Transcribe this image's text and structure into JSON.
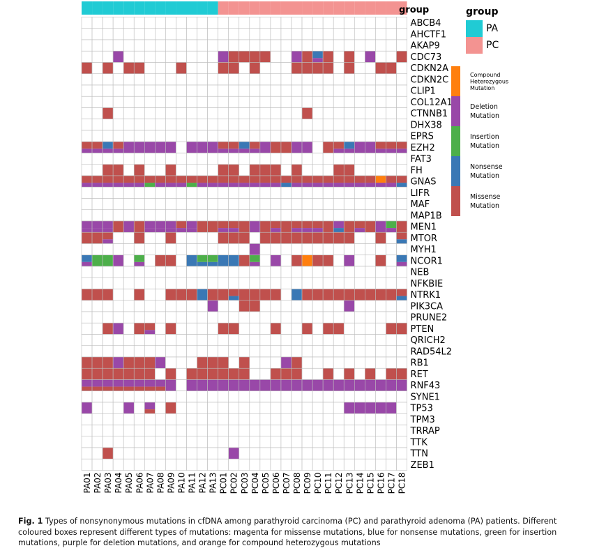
{
  "chart_data": {
    "type": "heatmap",
    "title": "",
    "xlabel": "",
    "ylabel": "",
    "samples": [
      "PA01",
      "PA02",
      "PA03",
      "PA04",
      "PA05",
      "PA06",
      "PA07",
      "PA08",
      "PA09",
      "PA10",
      "PA11",
      "PA12",
      "PA13",
      "PC01",
      "PC02",
      "PC03",
      "PC04",
      "PC05",
      "PC06",
      "PC07",
      "PC08",
      "PC09",
      "PC10",
      "PC11",
      "PC12",
      "PC13",
      "PC14",
      "PC15",
      "PC16",
      "PC17",
      "PC18"
    ],
    "sample_group": [
      "PA",
      "PA",
      "PA",
      "PA",
      "PA",
      "PA",
      "PA",
      "PA",
      "PA",
      "PA",
      "PA",
      "PA",
      "PA",
      "PC",
      "PC",
      "PC",
      "PC",
      "PC",
      "PC",
      "PC",
      "PC",
      "PC",
      "PC",
      "PC",
      "PC",
      "PC",
      "PC",
      "PC",
      "PC",
      "PC",
      "PC"
    ],
    "group_track_label": "group",
    "genes": [
      "ABCB4",
      "AHCTF1",
      "AKAP9",
      "CDC73",
      "CDKN2A",
      "CDKN2C",
      "CLIP1",
      "COL12A1",
      "CTNNB1",
      "DHX38",
      "EPRS",
      "EZH2",
      "FAT3",
      "FH",
      "GNAS",
      "LIFR",
      "MAF",
      "MAP1B",
      "MEN1",
      "MTOR",
      "MYH1",
      "NCOR1",
      "NEB",
      "NFKBIE",
      "NTRK1",
      "PIK3CA",
      "PRUNE2",
      "PTEN",
      "QRICH2",
      "RAD54L2",
      "RB1",
      "RET",
      "RNF43",
      "SYNE1",
      "TP53",
      "TPM3",
      "TRRAP",
      "TTK",
      "TTN",
      "ZEB1"
    ],
    "codes": {
      "M": "Missense Mutation",
      "D": "Deletion Mutation",
      "N": "Nonsense Mutation",
      "I": "Insertion Mutation",
      "C": "Compound Heterozygous Mutation"
    },
    "matrix": [
      [
        "",
        "",
        "",
        "",
        "",
        "",
        "",
        "",
        "",
        "",
        "",
        "",
        "",
        "",
        "",
        "",
        "",
        "",
        "",
        "",
        "",
        "",
        "",
        "",
        "",
        "",
        "",
        "",
        "",
        "",
        ""
      ],
      [
        "",
        "",
        "",
        "",
        "",
        "",
        "",
        "",
        "",
        "",
        "",
        "",
        "",
        "",
        "",
        "",
        "",
        "",
        "",
        "",
        "",
        "",
        "",
        "",
        "",
        "",
        "",
        "",
        "",
        "",
        ""
      ],
      [
        "",
        "",
        "",
        "",
        "",
        "",
        "",
        "",
        "",
        "",
        "",
        "",
        "",
        "",
        "",
        "",
        "",
        "",
        "",
        "",
        "",
        "",
        "",
        "",
        "",
        "",
        "",
        "",
        "",
        "",
        ""
      ],
      [
        "",
        "",
        "",
        "D",
        "",
        "",
        "",
        "",
        "",
        "",
        "",
        "",
        "",
        "D",
        "M",
        "M",
        "M",
        "M",
        "",
        "",
        "D",
        "M",
        "N|D",
        "M",
        "",
        "M",
        "",
        "D",
        "",
        "",
        "M"
      ],
      [
        "M",
        "",
        "M",
        "",
        "M",
        "M",
        "",
        "",
        "",
        "M",
        "",
        "",
        "",
        "M",
        "M",
        "",
        "M",
        "",
        "",
        "",
        "M",
        "M",
        "M",
        "M",
        "",
        "M",
        "",
        "",
        "M",
        "M",
        ""
      ],
      [
        "",
        "",
        "",
        "",
        "",
        "",
        "",
        "",
        "",
        "",
        "",
        "",
        "",
        "",
        "",
        "",
        "",
        "",
        "",
        "",
        "",
        "",
        "",
        "",
        "",
        "",
        "",
        "",
        "",
        "",
        ""
      ],
      [
        "",
        "",
        "",
        "",
        "",
        "",
        "",
        "",
        "",
        "",
        "",
        "",
        "",
        "",
        "",
        "",
        "",
        "",
        "",
        "",
        "",
        "",
        "",
        "",
        "",
        "",
        "",
        "",
        "",
        "",
        ""
      ],
      [
        "",
        "",
        "",
        "",
        "",
        "",
        "",
        "",
        "",
        "",
        "",
        "",
        "",
        "",
        "",
        "",
        "",
        "",
        "",
        "",
        "",
        "",
        "",
        "",
        "",
        "",
        "",
        "",
        "",
        "",
        ""
      ],
      [
        "",
        "",
        "M",
        "",
        "",
        "",
        "",
        "",
        "",
        "",
        "",
        "",
        "",
        "",
        "",
        "",
        "",
        "",
        "",
        "",
        "",
        "M",
        "",
        "",
        "",
        "",
        "",
        "",
        "",
        "",
        ""
      ],
      [
        "",
        "",
        "",
        "",
        "",
        "",
        "",
        "",
        "",
        "",
        "",
        "",
        "",
        "",
        "",
        "",
        "",
        "",
        "",
        "",
        "",
        "",
        "",
        "",
        "",
        "",
        "",
        "",
        "",
        "",
        ""
      ],
      [
        "",
        "",
        "",
        "",
        "",
        "",
        "",
        "",
        "",
        "",
        "",
        "",
        "",
        "",
        "",
        "",
        "",
        "",
        "",
        "",
        "",
        "",
        "",
        "",
        "",
        "",
        "",
        "",
        "",
        "",
        ""
      ],
      [
        "M|D",
        "M|D",
        "N|D",
        "M|D",
        "D",
        "D",
        "D",
        "D",
        "D",
        "",
        "D",
        "D",
        "D",
        "M|D",
        "M|D",
        "N|D",
        "M|D",
        "D",
        "M",
        "M",
        "D",
        "D",
        "",
        "M",
        "M|D",
        "N|D",
        "D",
        "D",
        "M|D",
        "M|D",
        "M|D"
      ],
      [
        "",
        "",
        "",
        "",
        "",
        "",
        "",
        "",
        "",
        "",
        "",
        "",
        "",
        "",
        "",
        "",
        "",
        "",
        "",
        "",
        "",
        "",
        "",
        "",
        "",
        "",
        "",
        "",
        "",
        "",
        ""
      ],
      [
        "",
        "",
        "M",
        "M",
        "",
        "M",
        "",
        "",
        "M",
        "",
        "",
        "",
        "",
        "M",
        "M",
        "",
        "M",
        "M",
        "M",
        "",
        "M",
        "",
        "",
        "",
        "M",
        "M",
        "",
        "",
        "",
        "",
        ""
      ],
      [
        "M|D",
        "M|D",
        "M|D",
        "M|D",
        "M|D",
        "M|D",
        "M|I",
        "M|D",
        "M|D",
        "M|D",
        "M|I",
        "M|D",
        "M|D",
        "M|D",
        "M|D",
        "M|D",
        "M|D",
        "M|D",
        "M|D",
        "M|N",
        "M|D",
        "M|D",
        "M|D",
        "M|D",
        "M|D",
        "M|D",
        "M|D",
        "M|D",
        "C|D",
        "M|D",
        "M|N"
      ],
      [
        "",
        "",
        "",
        "",
        "",
        "",
        "",
        "",
        "",
        "",
        "",
        "",
        "",
        "",
        "",
        "",
        "",
        "",
        "",
        "",
        "",
        "",
        "",
        "",
        "",
        "",
        "",
        "",
        "",
        "",
        ""
      ],
      [
        "",
        "",
        "",
        "",
        "",
        "",
        "",
        "",
        "",
        "",
        "",
        "",
        "",
        "",
        "",
        "",
        "",
        "",
        "",
        "",
        "",
        "",
        "",
        "",
        "",
        "",
        "",
        "",
        "",
        "",
        ""
      ],
      [
        "",
        "",
        "",
        "",
        "",
        "",
        "",
        "",
        "",
        "",
        "",
        "",
        "",
        "",
        "",
        "",
        "",
        "",
        "",
        "",
        "",
        "",
        "",
        "",
        "",
        "",
        "",
        "",
        "",
        "",
        ""
      ],
      [
        "D|D",
        "D|D",
        "D|D",
        "M",
        "D",
        "M",
        "D|D",
        "D|D",
        "D|D",
        "M|D",
        "D|D",
        "M",
        "M",
        "M|D",
        "M|D",
        "M",
        "D",
        "M",
        "M|D",
        "M",
        "M|D",
        "M|D",
        "M|D",
        "M",
        "D|N",
        "M",
        "M|D",
        "M",
        "D",
        "I|D",
        "M"
      ],
      [
        "M",
        "M",
        "M|D",
        "",
        "",
        "M",
        "",
        "",
        "M",
        "",
        "",
        "",
        "",
        "M",
        "M",
        "M",
        "",
        "M",
        "M",
        "M",
        "M",
        "M",
        "M",
        "M",
        "M",
        "M",
        "",
        "",
        "M",
        "",
        "M|N"
      ],
      [
        "",
        "",
        "",
        "",
        "",
        "",
        "",
        "",
        "",
        "",
        "",
        "",
        "",
        "",
        "",
        "",
        "D",
        "",
        "",
        "",
        "",
        "",
        "",
        "",
        "",
        "",
        "",
        "",
        "",
        "",
        ""
      ],
      [
        "N|D",
        "I",
        "I",
        "D",
        "",
        "I|D",
        "",
        "M",
        "M",
        "",
        "N",
        "I|N",
        "I|N",
        "N",
        "N",
        "M",
        "I|D",
        "",
        "D",
        "",
        "M",
        "C",
        "M",
        "M",
        "",
        "D",
        "",
        "",
        "M",
        "",
        "N|D"
      ],
      [
        "",
        "",
        "",
        "",
        "",
        "",
        "",
        "",
        "",
        "",
        "",
        "",
        "",
        "",
        "",
        "",
        "",
        "",
        "",
        "",
        "",
        "",
        "",
        "",
        "",
        "",
        "",
        "",
        "",
        "",
        ""
      ],
      [
        "",
        "",
        "",
        "",
        "",
        "",
        "",
        "",
        "",
        "",
        "",
        "",
        "",
        "",
        "",
        "",
        "",
        "",
        "",
        "",
        "",
        "",
        "",
        "",
        "",
        "",
        "",
        "",
        "",
        "",
        ""
      ],
      [
        "M",
        "M",
        "M",
        "",
        "",
        "M",
        "",
        "",
        "M",
        "M",
        "M",
        "N",
        "M",
        "M",
        "M|N",
        "M",
        "M",
        "M",
        "M",
        "",
        "N",
        "M",
        "M",
        "M",
        "M",
        "M",
        "M",
        "M",
        "M",
        "M",
        "M|N"
      ],
      [
        "",
        "",
        "",
        "",
        "",
        "",
        "",
        "",
        "",
        "",
        "",
        "",
        "D",
        "",
        "",
        "M",
        "M",
        "",
        "",
        "",
        "",
        "",
        "",
        "",
        "",
        "D",
        "",
        "",
        "",
        "",
        ""
      ],
      [
        "",
        "",
        "",
        "",
        "",
        "",
        "",
        "",
        "",
        "",
        "",
        "",
        "",
        "",
        "",
        "",
        "",
        "",
        "",
        "",
        "",
        "",
        "",
        "",
        "",
        "",
        "",
        "",
        "",
        "",
        ""
      ],
      [
        "",
        "",
        "M",
        "D",
        "",
        "M",
        "M|D",
        "",
        "M",
        "",
        "",
        "",
        "",
        "M",
        "M",
        "",
        "",
        "",
        "M",
        "",
        "",
        "M",
        "",
        "M",
        "M",
        "",
        "",
        "",
        "",
        "M",
        "M"
      ],
      [
        "",
        "",
        "",
        "",
        "",
        "",
        "",
        "",
        "",
        "",
        "",
        "",
        "",
        "",
        "",
        "",
        "",
        "",
        "",
        "",
        "",
        "",
        "",
        "",
        "",
        "",
        "",
        "",
        "",
        "",
        ""
      ],
      [
        "",
        "",
        "",
        "",
        "",
        "",
        "",
        "",
        "",
        "",
        "",
        "",
        "",
        "",
        "",
        "",
        "",
        "",
        "",
        "",
        "",
        "",
        "",
        "",
        "",
        "",
        "",
        "",
        "",
        "",
        ""
      ],
      [
        "M",
        "M",
        "M",
        "D",
        "M",
        "M",
        "M",
        "D",
        "",
        "",
        "",
        "M",
        "M",
        "M",
        "",
        "M",
        "",
        "",
        "",
        "D",
        "M",
        "",
        "",
        "",
        "",
        "",
        "",
        "",
        "",
        "",
        ""
      ],
      [
        "M",
        "M",
        "M",
        "M",
        "M",
        "M",
        "M",
        "",
        "M",
        "",
        "M",
        "M",
        "M",
        "M",
        "M",
        "M",
        "",
        "",
        "M",
        "M",
        "M",
        "",
        "",
        "M",
        "",
        "M",
        "",
        "M",
        "",
        "M",
        "M"
      ],
      [
        "D|M",
        "D|M",
        "D|M",
        "D|M",
        "D|M",
        "D|M",
        "D|M",
        "D|M",
        "D",
        "",
        "D",
        "D",
        "D",
        "D",
        "D",
        "D",
        "D",
        "D",
        "D",
        "D",
        "D",
        "D",
        "D",
        "D",
        "D",
        "D",
        "D",
        "D",
        "D",
        "D",
        "D"
      ],
      [
        "",
        "",
        "",
        "",
        "",
        "",
        "",
        "",
        "",
        "",
        "",
        "",
        "",
        "",
        "",
        "",
        "",
        "",
        "",
        "",
        "",
        "",
        "",
        "",
        "",
        "",
        "",
        "",
        "",
        "",
        ""
      ],
      [
        "D",
        "",
        "",
        "",
        "D",
        "",
        "D|M",
        "",
        "M",
        "",
        "",
        "",
        "",
        "",
        "",
        "",
        "",
        "",
        "",
        "",
        "",
        "",
        "",
        "",
        "",
        "D",
        "D",
        "D",
        "D",
        "D",
        ""
      ],
      [
        "",
        "",
        "",
        "",
        "",
        "",
        "",
        "",
        "",
        "",
        "",
        "",
        "",
        "",
        "",
        "",
        "",
        "",
        "",
        "",
        "",
        "",
        "",
        "",
        "",
        "",
        "",
        "",
        "",
        "",
        ""
      ],
      [
        "",
        "",
        "",
        "",
        "",
        "",
        "",
        "",
        "",
        "",
        "",
        "",
        "",
        "",
        "",
        "",
        "",
        "",
        "",
        "",
        "",
        "",
        "",
        "",
        "",
        "",
        "",
        "",
        "",
        "",
        ""
      ],
      [
        "",
        "",
        "",
        "",
        "",
        "",
        "",
        "",
        "",
        "",
        "",
        "",
        "",
        "",
        "",
        "",
        "",
        "",
        "",
        "",
        "",
        "",
        "",
        "",
        "",
        "",
        "",
        "",
        "",
        "",
        ""
      ],
      [
        "",
        "",
        "M",
        "",
        "",
        "",
        "",
        "",
        "",
        "",
        "",
        "",
        "",
        "",
        "D",
        "",
        "",
        "",
        "",
        "",
        "",
        "",
        "",
        "",
        "",
        "",
        "",
        "",
        "",
        "",
        ""
      ],
      [
        "",
        "",
        "",
        "",
        "",
        "",
        "",
        "",
        "",
        "",
        "",
        "",
        "",
        "",
        "",
        "",
        "",
        "",
        "",
        "",
        "",
        "",
        "",
        "",
        "",
        "",
        "",
        "",
        "",
        "",
        ""
      ]
    ],
    "legend_group": {
      "title": "group",
      "items": [
        {
          "label": "PA",
          "color": "#20cbd4"
        },
        {
          "label": "PC",
          "color": "#f39391"
        }
      ]
    },
    "legend_mutation": [
      {
        "code": "C",
        "label": [
          "Compound",
          "Heterozygous",
          "Mutation"
        ],
        "color": "#ff7f0e"
      },
      {
        "code": "D",
        "label": [
          "Deletion",
          "Mutation"
        ],
        "color": "#9948a8"
      },
      {
        "code": "I",
        "label": [
          "Insertion",
          "Mutation"
        ],
        "color": "#4daf4a"
      },
      {
        "code": "N",
        "label": [
          "Nonsense",
          "Mutation"
        ],
        "color": "#3a78b5"
      },
      {
        "code": "M",
        "label": [
          "Missense",
          "Mutation"
        ],
        "color": "#c0504d"
      }
    ],
    "colors": {
      "grid": "#bdbdbd",
      "empty": "#ffffff"
    }
  },
  "caption": {
    "label": "Fig. 1",
    "text": "Types of nonsynonymous mutations in cfDNA among parathyroid carcinoma (PC) and parathyroid adenoma (PA) patients. Different coloured boxes represent different types of mutations: magenta for missense mutations, blue for nonsense mutations, green for insertion mutations, purple for deletion mutations, and orange for compound heterozygous mutations"
  }
}
